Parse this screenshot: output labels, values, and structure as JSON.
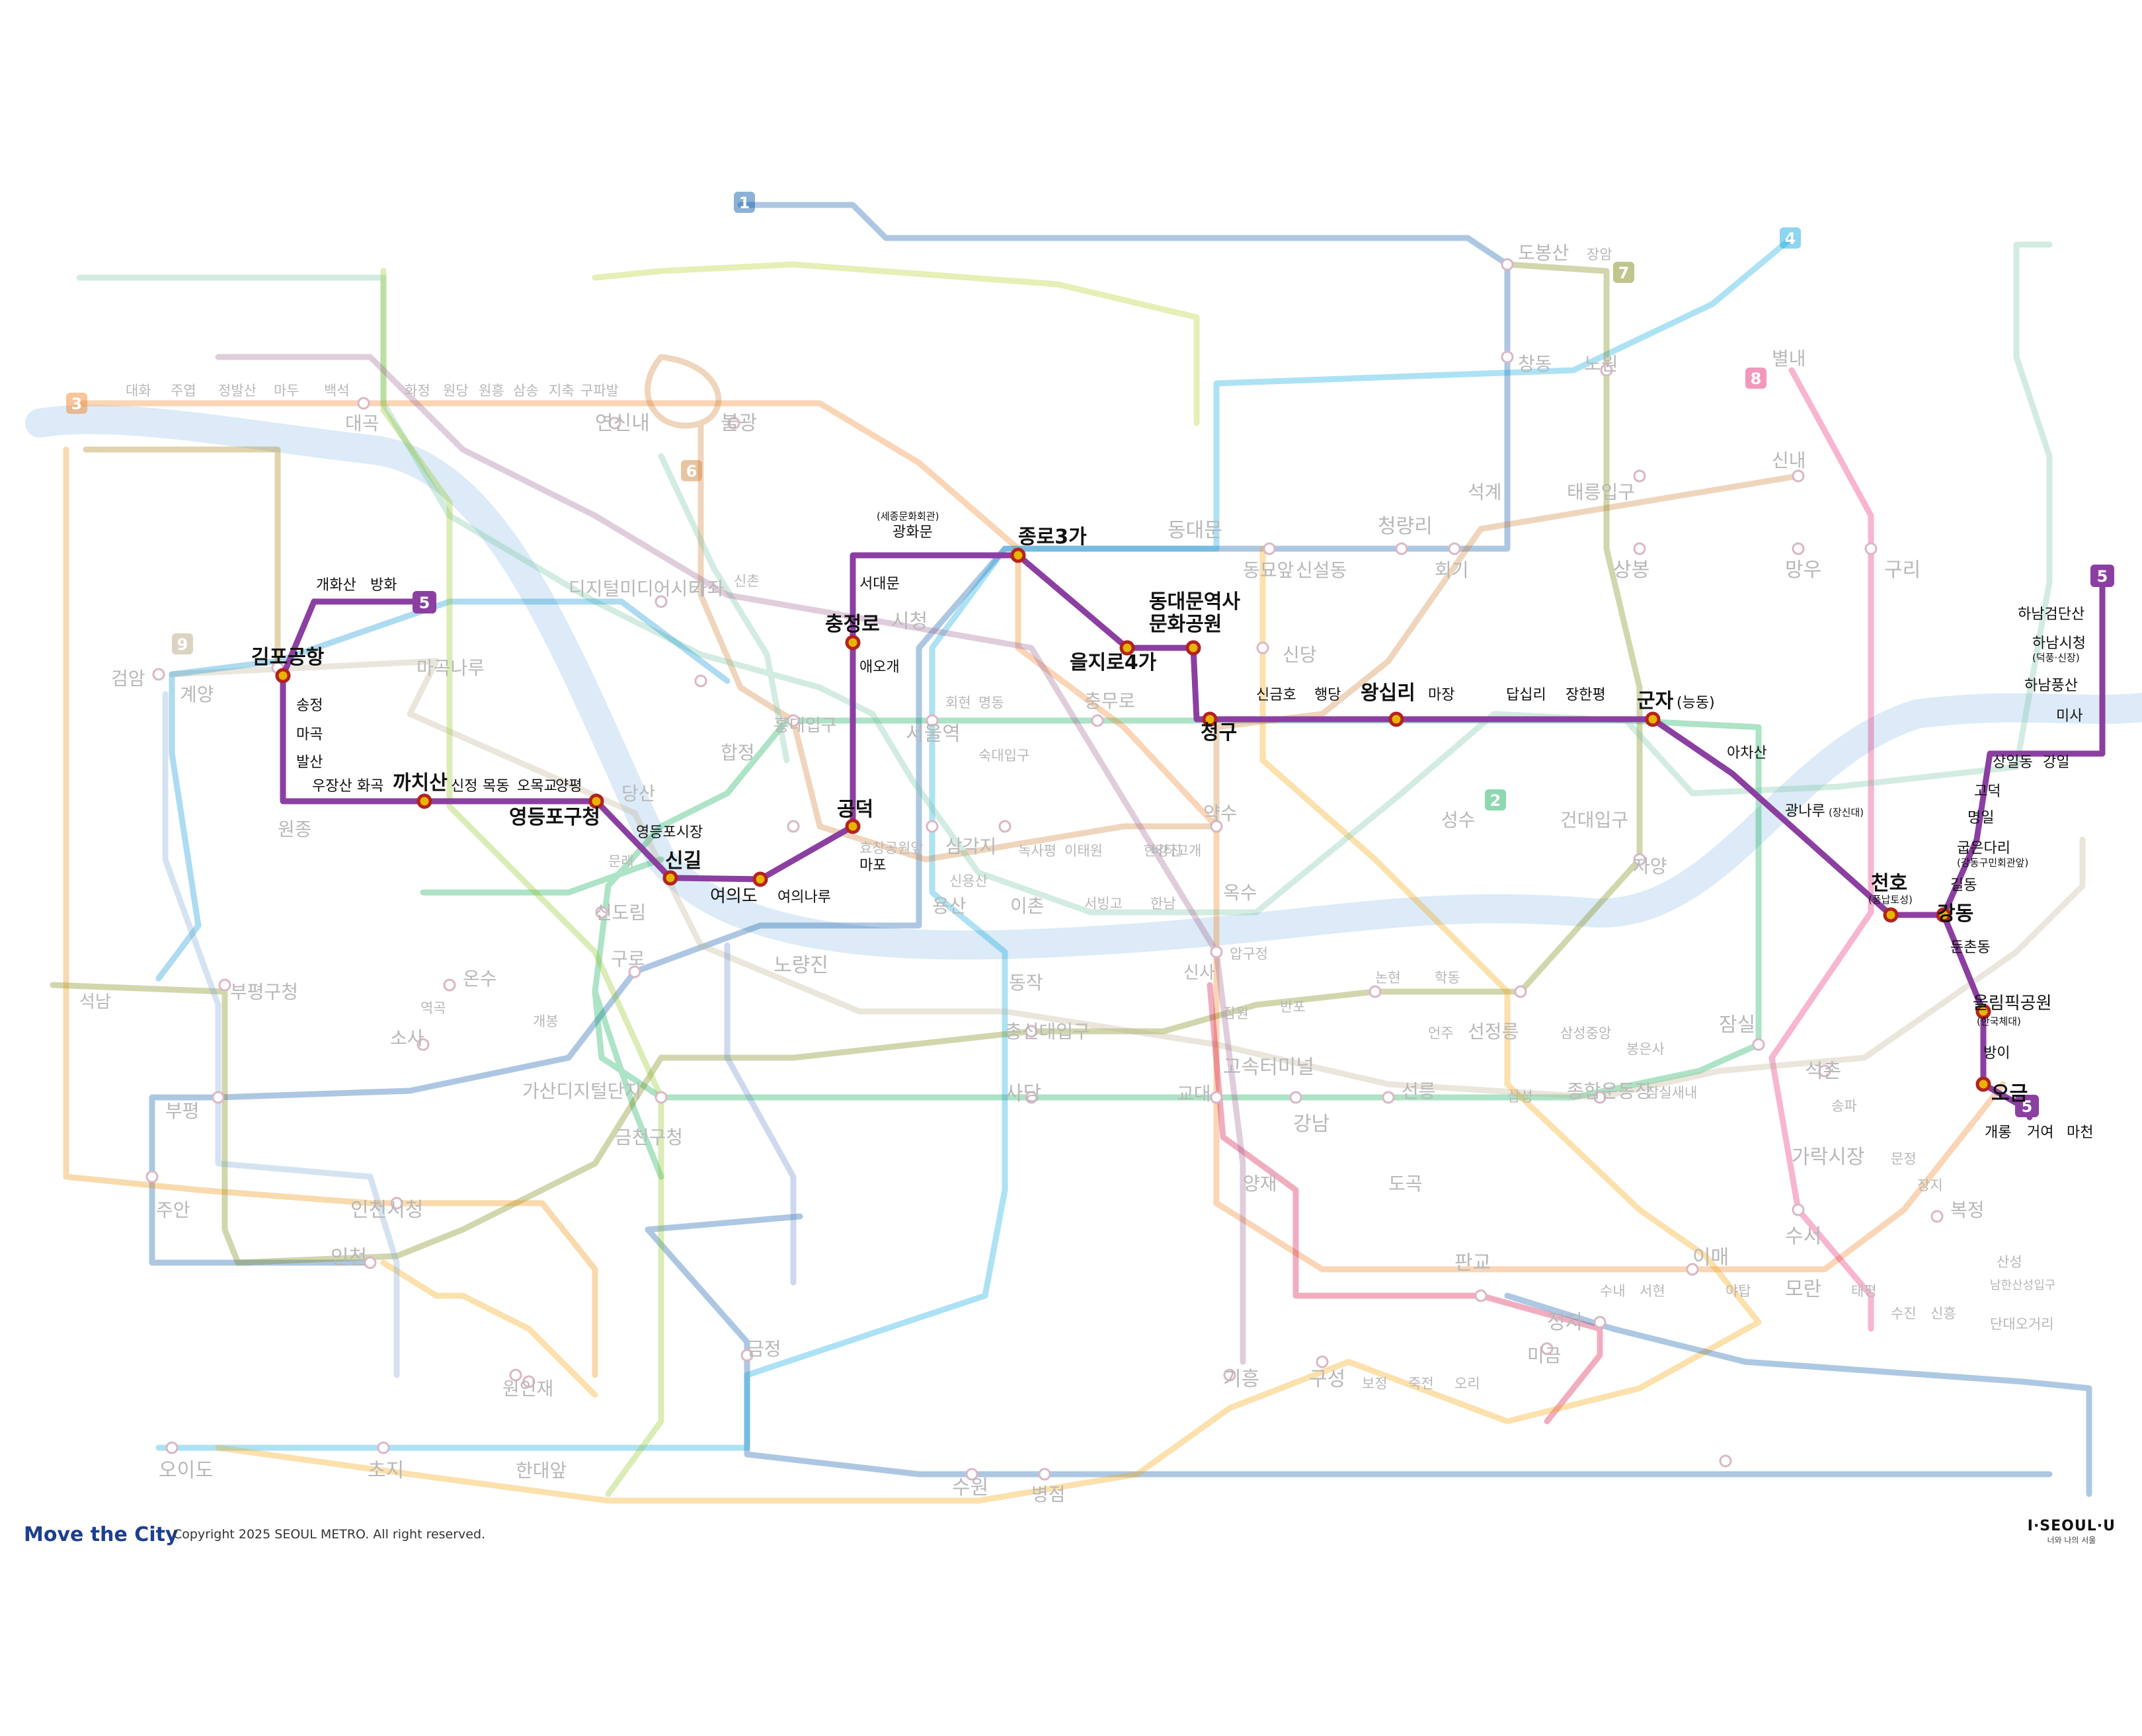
{
  "footer": {
    "brand": "Move the City",
    "copyright": "Copyright 2025 SEOUL METRO. All right reserved.",
    "seoul_logo": "I·SEOUL·U",
    "seoul_tagline": "너와 나의 서울"
  },
  "highlight_line": {
    "number": "5",
    "color": "#8b3fa1",
    "transfer_color": "#e8b400",
    "stations": {
      "banghwa": "방화",
      "gaehwasan": "개화산",
      "gimpo_airport": "김포공항",
      "songjeong": "송정",
      "magok": "마곡",
      "balsan": "발산",
      "ujangsan": "우장산",
      "hwagok": "화곡",
      "kkachisan": "까치산",
      "sinjeong": "신정",
      "mokdong": "목동",
      "omokgyo": "오목교",
      "yangpyeong": "양평",
      "yeongdeungpo_gu_office": "영등포구청",
      "yeongdeungpo_market": "영등포시장",
      "singil": "신길",
      "yeouido": "여의도",
      "yeouinaru": "여의나루",
      "mapo": "마포",
      "gongdeok": "공덕",
      "aeogae": "애오개",
      "chungjeongno": "충정로",
      "seodaemun": "서대문",
      "gwanghwamun": "광화문",
      "gwanghwamun_sub": "(세종문화회관)",
      "jongno3ga": "종로3가",
      "euljiro4ga": "을지로4가",
      "ddp": "동대문역사\n문화공원",
      "cheonggu": "청구",
      "singeumho": "신금호",
      "haengdang": "행당",
      "wangsimni": "왕십리",
      "majang": "마장",
      "dapsimni": "답십리",
      "janghanpyeong": "장한평",
      "gunja": "군자",
      "gunja_sub": "(능동)",
      "achasan": "아차산",
      "gwangnaru": "광나루",
      "gwangnaru_sub": "(장신대)",
      "cheonho": "천호",
      "cheonho_sub": "(풍납토성)",
      "gangdong": "강동",
      "gildong": "길동",
      "gubeundari": "굽은다리",
      "gubeundari_sub": "(강동구민회관앞)",
      "myeongil": "명일",
      "godeok": "고덕",
      "sangil": "상일동",
      "gangil": "강일",
      "misa": "미사",
      "hanam_pungsan": "하남풍산",
      "hanam_city_hall": "하남시청",
      "hanam_city_hall_sub": "(덕풍·신장)",
      "hanam_geomdansan": "하남검단산",
      "dunchon_dong": "둔촌동",
      "olympic_park": "올림픽공원",
      "olympic_park_sub": "(한국체대)",
      "bangi": "방이",
      "ogeum": "오금",
      "gaerong": "개롱",
      "geoyeo": "거여",
      "macheon": "마천"
    }
  },
  "background_lines": {
    "line1": "#0052a4",
    "line2": "#00a84d",
    "line3": "#ef7c1c",
    "line4": "#00a5de",
    "line6": "#cd7c2f",
    "line7": "#747f00",
    "line8": "#e6186c",
    "line9": "#bdb092",
    "airport": "#0090d2",
    "shinbundang": "#d4003b",
    "suin_bundang": "#f5a200",
    "gyeongui": "#77c4a3",
    "ui_sinseol": "#b0ce18",
    "incheon1": "#7ca8d5",
    "incheon2": "#ed8b00",
    "gimpo_gold": "#a17800",
    "seohae": "#8fc31f",
    "gtx_a": "#9a6292",
    "sillim": "#6789ca",
    "gyeonggang": "#0054a6"
  },
  "line_badges": {
    "b1": "1",
    "b2": "2",
    "b3": "3",
    "b4": "4",
    "b5": "5",
    "b6": "6",
    "b7": "7",
    "b8": "8",
    "b9": "9"
  },
  "other_stations": {
    "yeonsinnae": "연신내",
    "bulgwang": "불광",
    "daehwa": "대화",
    "juyeop": "주엽",
    "jeongbalsan": "정발산",
    "madu": "마두",
    "baekseok": "백석",
    "daegok": "대곡",
    "hwajeong": "화정",
    "wondang": "원당",
    "wonheung": "원흥",
    "samsong": "삼송",
    "jichuk": "지축",
    "gupabal": "구파발",
    "dobongsan": "도봉산",
    "jangam": "장암",
    "changdong": "창동",
    "nowon": "노원",
    "hoegi": "회기",
    "cheongnyangni": "청량리",
    "dongdaemun": "동대문",
    "dongmyo": "동묘앞",
    "sinseoldong": "신설동",
    "sindang": "신당",
    "sangbong": "상봉",
    "mangu": "망우",
    "guri": "구리",
    "byeollae": "별내",
    "sinnae": "신내",
    "taereung": "태릉입구",
    "seokgye": "석계",
    "hapjeong": "합정",
    "hongdae": "홍대입구",
    "sinchon": "신촌",
    "seoul_station": "서울역",
    "sicheong": "시청",
    "chungmuro": "충무로",
    "yaksu": "약수",
    "oksu": "옥수",
    "seongsu": "성수",
    "geondae": "건대입구",
    "jayang": "자양",
    "jamsil": "잠실",
    "gangnam": "강남",
    "seolleung": "선릉",
    "sports_complex": "종합운동장",
    "express_bus": "고속터미널",
    "sadang": "사당",
    "dongjak": "동작",
    "chongsin": "총신대입구",
    "noryangjin": "노량진",
    "daebang": "대방",
    "singil_other": "신도림",
    "guro": "구로",
    "gasan": "가산디지털단지",
    "geumcheon": "금천구청",
    "onsu": "온수",
    "bucheon": "부천",
    "bupyeong": "부평",
    "bupyeong_gu": "부평구청",
    "incheon_city_hall": "인천시청",
    "juan": "주안",
    "incheon": "인천",
    "woninjae": "원인재",
    "oido": "오이도",
    "choji": "초지",
    "handae": "한대앞",
    "geumjeong": "금정",
    "suwon": "수원",
    "byeongjeom": "병점",
    "giheung": "기흥",
    "guseong": "구성",
    "jeongja": "정자",
    "migeum": "미금",
    "pangyo": "판교",
    "moran": "모란",
    "imae": "이매",
    "bokjeong": "복정",
    "garak": "가락시장",
    "seokchon": "석촌",
    "suseo": "수서",
    "gyodae": "교대",
    "yangjae": "양재",
    "dogok": "도곡",
    "digital_media": "디지털미디어시티",
    "gajwa": "가좌",
    "dangsan": "당산",
    "mullae": "문래",
    "geomam": "검암",
    "gyeyang": "계양",
    "gimpo": "김포공항",
    "magoknaru": "마곡나루",
    "seokbawi": "석남",
    "wonjong": "원종",
    "sosa": "소사",
    "yeokgok": "역곡",
    "gaebong": "개봉",
    "sindorim": "신도림",
    "hoehyeon": "회현",
    "myeongdong": "명동",
    "ichon": "이촌",
    "yongsan": "용산",
    "samgakji": "삼각지",
    "sinyongsan": "신용산",
    "hyochang": "효창공원앞",
    "sookmyung": "숙대입구",
    "hangangjin": "한강진",
    "itaewon": "이태원",
    "noksapyeong": "녹사평",
    "beotigogae": "버티고개",
    "hannam": "한남",
    "seobinggo": "서빙고",
    "sinsa": "신사",
    "apgujeong": "압구정",
    "jamwon": "잠원",
    "banpo": "반포",
    "nonhyeon": "논현",
    "hakdong": "학동",
    "eonju": "언주",
    "seonjeongneung": "선정릉",
    "samseong": "삼성",
    "samseong_jungang": "삼성중앙",
    "bongeunsa": "봉은사",
    "jamsil_saenae": "잠실새내",
    "songpa": "송파",
    "munjeong": "문정",
    "jangji": "장지",
    "namhansanseong": "남한산성입구",
    "sanseong": "산성",
    "sinheung": "신흥",
    "dandaeogeori": "단대오거리",
    "sujin": "수진",
    "taepyeong": "태평",
    "yatap": "야탑",
    "seohyeon": "서현",
    "sunae": "수내",
    "ori": "오리",
    "jukjeon": "죽전",
    "bojeong": "보정"
  }
}
